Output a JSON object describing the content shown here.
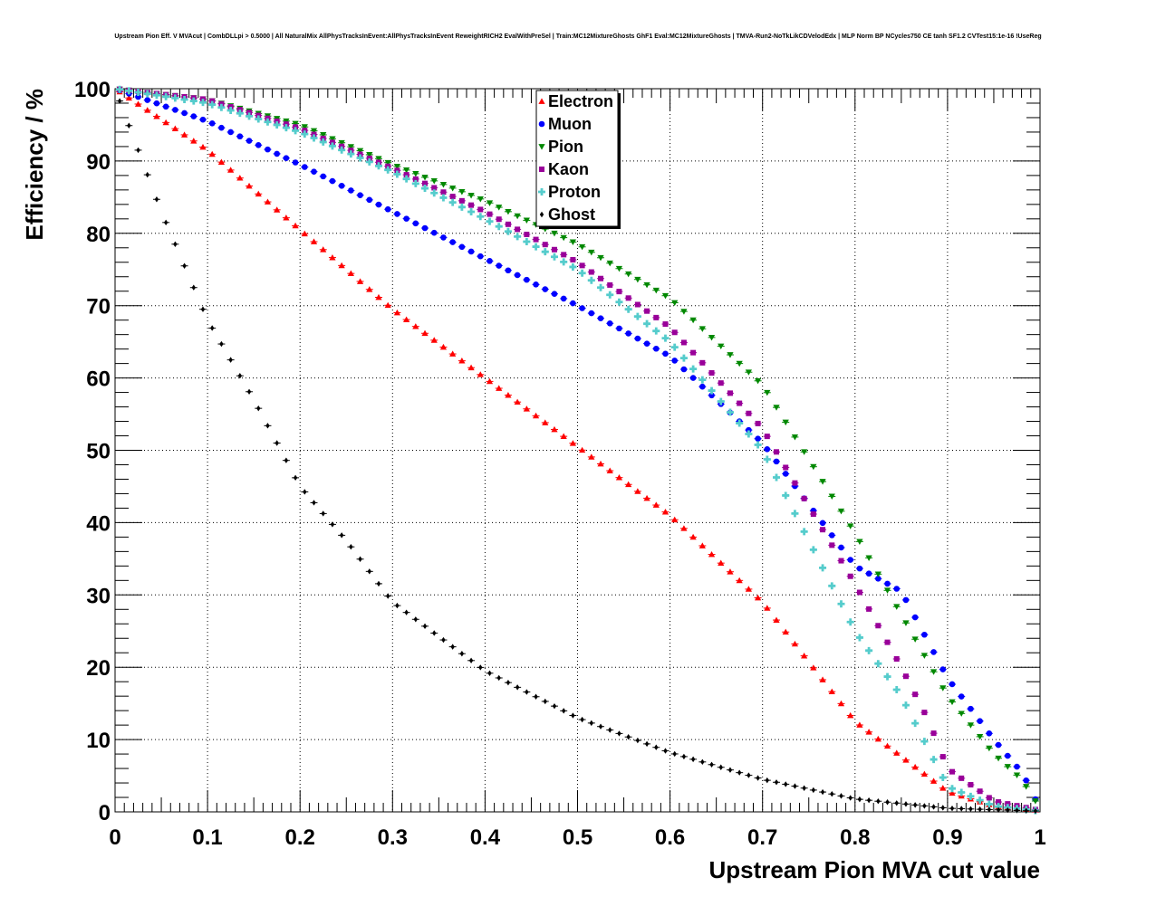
{
  "chart_data": {
    "type": "scatter",
    "title": "Upstream Pion Eff. V MVAcut | CombDLLpi > 0.5000 | All NaturalMix AllPhysTracksInEvent:AllPhysTracksInEvent ReweightRICH2 EvalWithPreSel | Train:MC12MixtureGhosts GhF1 Eval:MC12MixtureGhosts | TMVA-Run2-NoTkLikCDVelodEdx | MLP Norm BP NCycles750 CE tanh SF1.2 CVTest15:1e-16 !UseReg",
    "xlabel": "Upstream Pion MVA cut value",
    "ylabel": "Efficiency / %",
    "xlim": [
      0,
      1
    ],
    "ylim": [
      0,
      100
    ],
    "x_ticks": [
      "0",
      "0.1",
      "0.2",
      "0.3",
      "0.4",
      "0.5",
      "0.6",
      "0.7",
      "0.8",
      "0.9",
      "1"
    ],
    "y_ticks": [
      "0",
      "10",
      "20",
      "30",
      "40",
      "50",
      "60",
      "70",
      "80",
      "90",
      "100"
    ],
    "grid": true,
    "legend_position": "top-center",
    "series": [
      {
        "name": "Electron",
        "color": "#ff0000",
        "marker": "triangle-up",
        "points": [
          [
            0.0,
            100
          ],
          [
            0.1,
            91.5
          ],
          [
            0.2,
            80.5
          ],
          [
            0.3,
            69.5
          ],
          [
            0.4,
            60
          ],
          [
            0.5,
            50.5
          ],
          [
            0.6,
            41
          ],
          [
            0.7,
            29
          ],
          [
            0.8,
            12.5
          ],
          [
            0.9,
            2.8
          ],
          [
            0.95,
            0.8
          ],
          [
            1.0,
            0.2
          ]
        ]
      },
      {
        "name": "Muon",
        "color": "#0000ff",
        "marker": "circle",
        "points": [
          [
            0.0,
            100
          ],
          [
            0.1,
            95.5
          ],
          [
            0.2,
            89.5
          ],
          [
            0.3,
            83
          ],
          [
            0.4,
            76.5
          ],
          [
            0.5,
            70
          ],
          [
            0.6,
            63
          ],
          [
            0.7,
            51
          ],
          [
            0.8,
            34
          ],
          [
            0.85,
            30.5
          ],
          [
            0.9,
            18.5
          ],
          [
            0.95,
            10
          ],
          [
            0.98,
            5.5
          ],
          [
            0.99,
            3.2
          ],
          [
            1.0,
            0.3
          ]
        ]
      },
      {
        "name": "Pion",
        "color": "#008800",
        "marker": "triangle-down",
        "points": [
          [
            0.0,
            100
          ],
          [
            0.1,
            98.5
          ],
          [
            0.2,
            95
          ],
          [
            0.3,
            89.5
          ],
          [
            0.4,
            84.5
          ],
          [
            0.5,
            78.5
          ],
          [
            0.6,
            71
          ],
          [
            0.7,
            59
          ],
          [
            0.8,
            38.5
          ],
          [
            0.9,
            16
          ],
          [
            0.95,
            8
          ],
          [
            0.98,
            4.5
          ],
          [
            1.0,
            0.5
          ]
        ]
      },
      {
        "name": "Kaon",
        "color": "#990099",
        "marker": "square",
        "points": [
          [
            0.0,
            100
          ],
          [
            0.1,
            98.5
          ],
          [
            0.2,
            94.5
          ],
          [
            0.3,
            89
          ],
          [
            0.4,
            83
          ],
          [
            0.5,
            76
          ],
          [
            0.6,
            67
          ],
          [
            0.7,
            53
          ],
          [
            0.8,
            31.5
          ],
          [
            0.85,
            20
          ],
          [
            0.88,
            12.5
          ],
          [
            0.9,
            6
          ],
          [
            0.95,
            1.5
          ],
          [
            1.0,
            0.2
          ]
        ]
      },
      {
        "name": "Proton",
        "color": "#55cccc",
        "marker": "cross",
        "points": [
          [
            0.0,
            100
          ],
          [
            0.1,
            98
          ],
          [
            0.2,
            94
          ],
          [
            0.3,
            88.5
          ],
          [
            0.4,
            82
          ],
          [
            0.5,
            75
          ],
          [
            0.6,
            65
          ],
          [
            0.7,
            50
          ],
          [
            0.8,
            25
          ],
          [
            0.85,
            16
          ],
          [
            0.88,
            8.5
          ],
          [
            0.9,
            3.5
          ],
          [
            0.95,
            0.8
          ],
          [
            1.0,
            0.1
          ]
        ]
      },
      {
        "name": "Ghost",
        "color": "#000000",
        "marker": "diamond",
        "points": [
          [
            0.0,
            100
          ],
          [
            0.05,
            83
          ],
          [
            0.1,
            68
          ],
          [
            0.15,
            57
          ],
          [
            0.2,
            45
          ],
          [
            0.25,
            37.5
          ],
          [
            0.3,
            29
          ],
          [
            0.4,
            19.5
          ],
          [
            0.5,
            13
          ],
          [
            0.6,
            8.2
          ],
          [
            0.7,
            4.5
          ],
          [
            0.8,
            1.8
          ],
          [
            0.9,
            0.5
          ],
          [
            1.0,
            0.1
          ]
        ]
      }
    ]
  }
}
